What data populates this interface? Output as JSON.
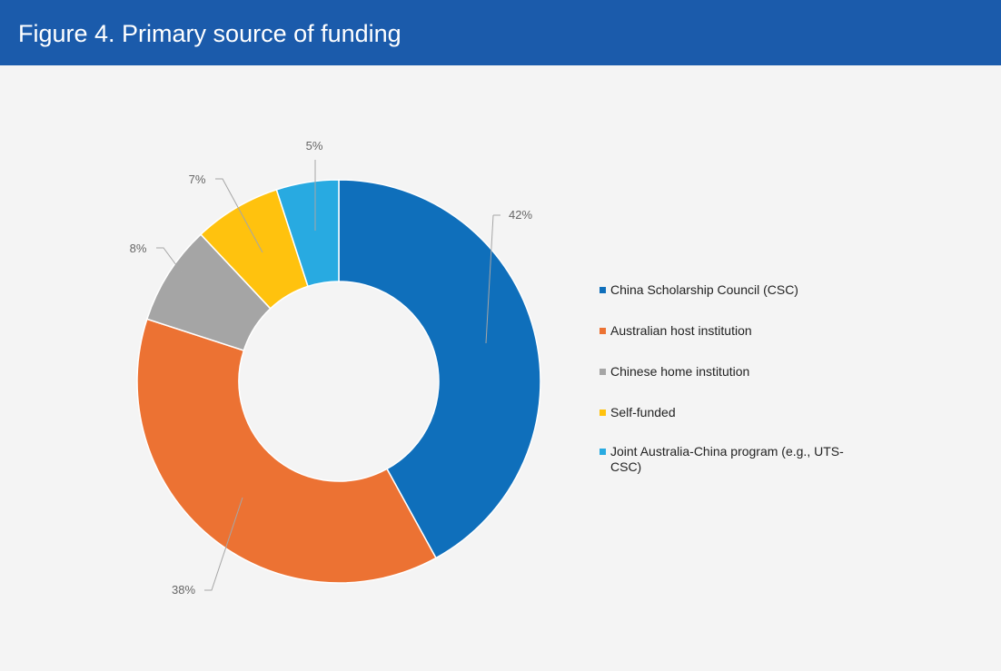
{
  "header": {
    "title": "Figure 4. Primary source of funding",
    "background_color": "#1b5bab"
  },
  "chart_data": {
    "type": "pie",
    "variant": "donut",
    "title": "",
    "legend_position": "right",
    "series": [
      {
        "name": "China Scholarship Council (CSC)",
        "value": 42,
        "label": "42%",
        "color": "#0f6fbb"
      },
      {
        "name": "Australian host institution",
        "value": 38,
        "label": "38%",
        "color": "#ec7233"
      },
      {
        "name": "Chinese home institution",
        "value": 8,
        "label": "8%",
        "color": "#a5a5a5"
      },
      {
        "name": "Self-funded",
        "value": 7,
        "label": "7%",
        "color": "#ffc20e"
      },
      {
        "name": "Joint Australia-China program (e.g., UTS-CSC)",
        "value": 5,
        "label": "5%",
        "color": "#28aae1"
      }
    ]
  }
}
